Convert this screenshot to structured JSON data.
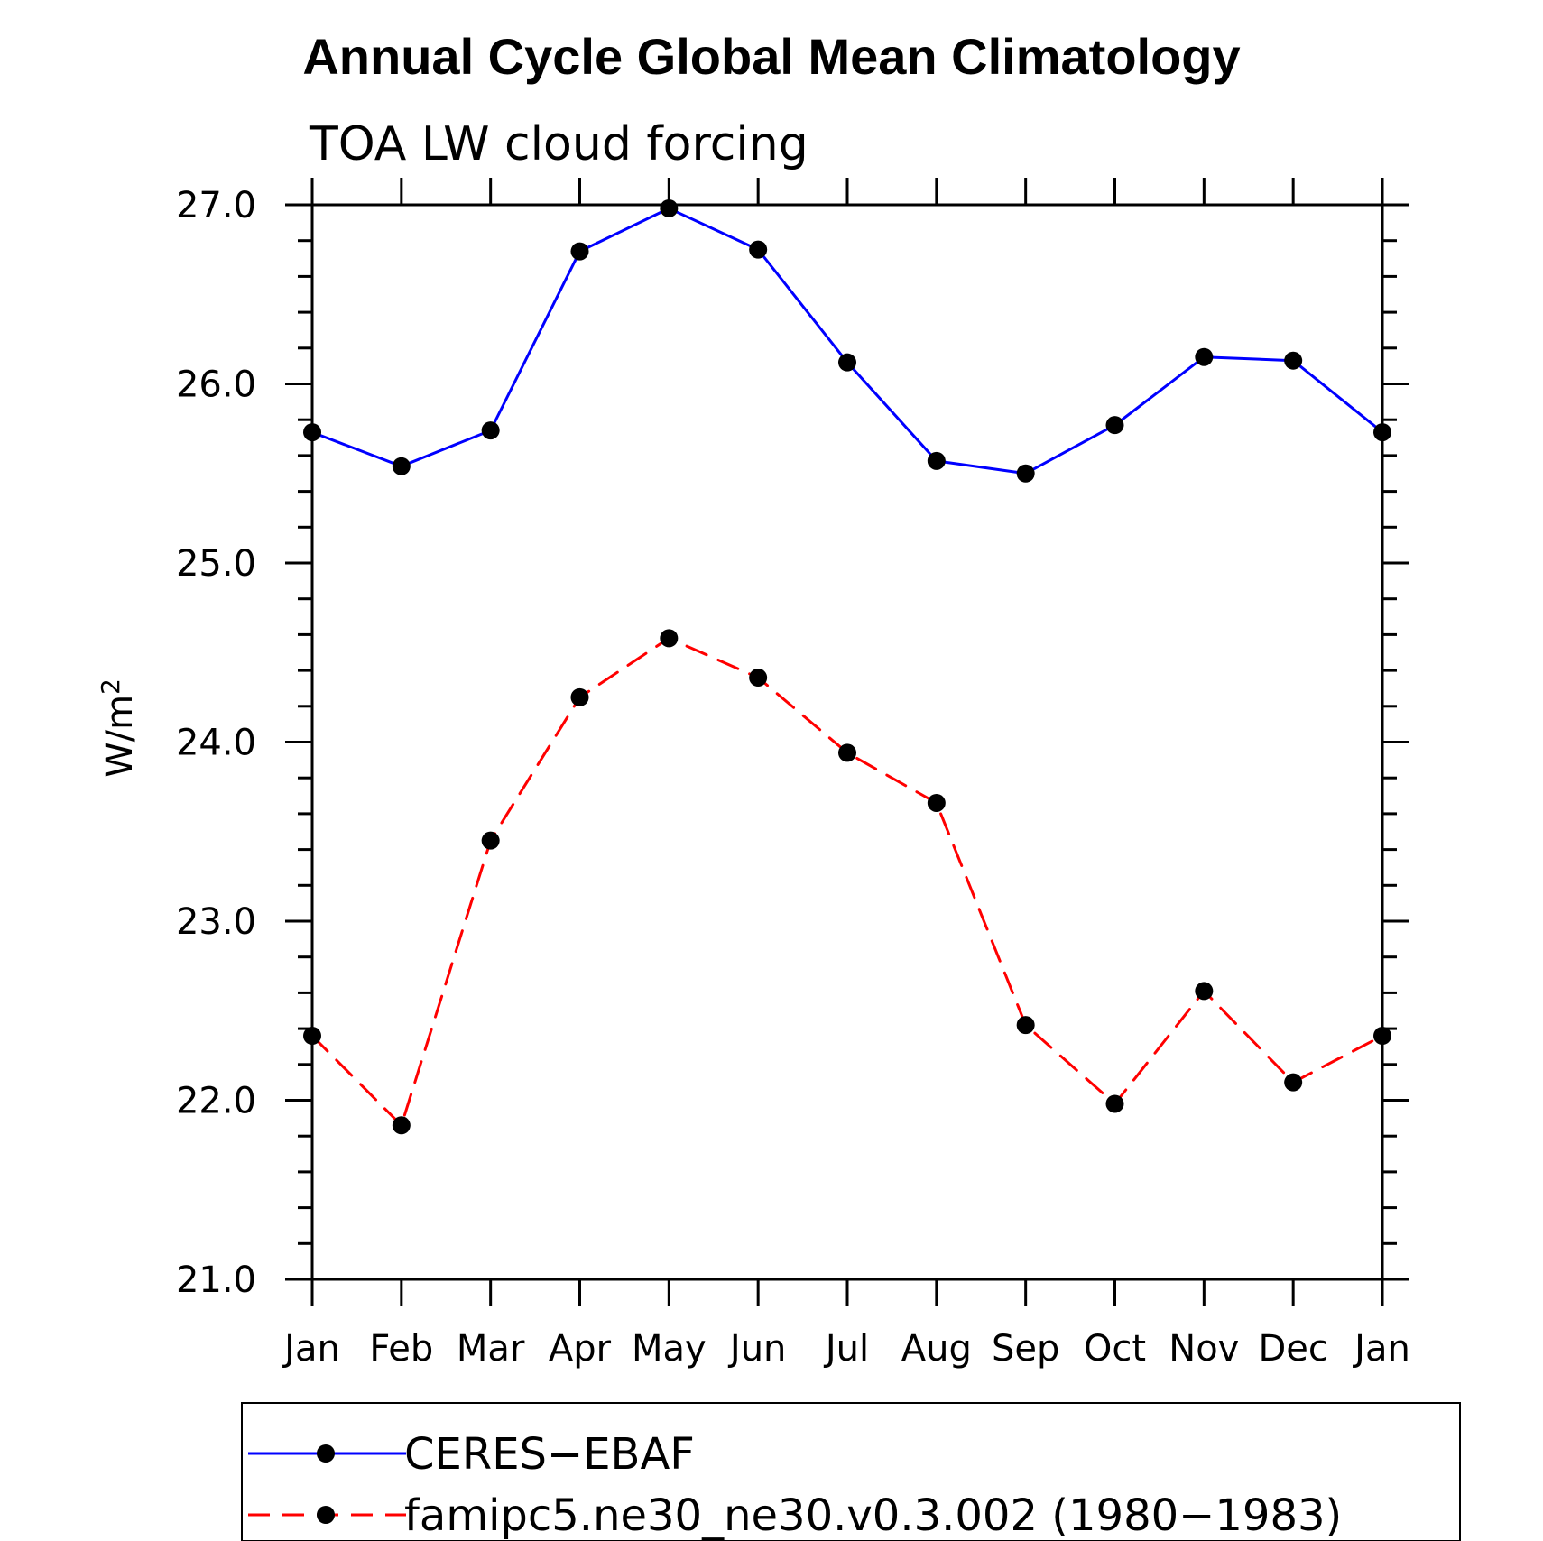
{
  "chart_data": {
    "type": "line",
    "title": "Annual Cycle Global Mean Climatology",
    "subtitle": "TOA LW cloud forcing",
    "xlabel": "",
    "ylabel": "W/m",
    "ylabel_superscript": "2",
    "categories": [
      "Jan",
      "Feb",
      "Mar",
      "Apr",
      "May",
      "Jun",
      "Jul",
      "Aug",
      "Sep",
      "Oct",
      "Nov",
      "Dec",
      "Jan"
    ],
    "y_tick_labels": [
      "21.0",
      "22.0",
      "23.0",
      "24.0",
      "25.0",
      "26.0",
      "27.0"
    ],
    "ylim": [
      21.0,
      27.0
    ],
    "grid": false,
    "legend_position": "bottom",
    "series": [
      {
        "name": "CERES−EBAF",
        "color": "#0000ff",
        "line_style": "solid",
        "marker": "filled-circle",
        "values": [
          25.73,
          25.54,
          25.74,
          26.74,
          26.98,
          26.75,
          26.12,
          25.57,
          25.5,
          25.77,
          26.15,
          26.13,
          25.73
        ]
      },
      {
        "name": "famipc5.ne30_ne30.v0.3.002 (1980−1983)",
        "color": "#ff0000",
        "line_style": "dashed",
        "marker": "filled-circle",
        "values": [
          22.36,
          21.86,
          23.45,
          24.25,
          24.58,
          24.36,
          23.94,
          23.66,
          22.42,
          21.98,
          22.61,
          22.1,
          22.36
        ]
      }
    ]
  }
}
